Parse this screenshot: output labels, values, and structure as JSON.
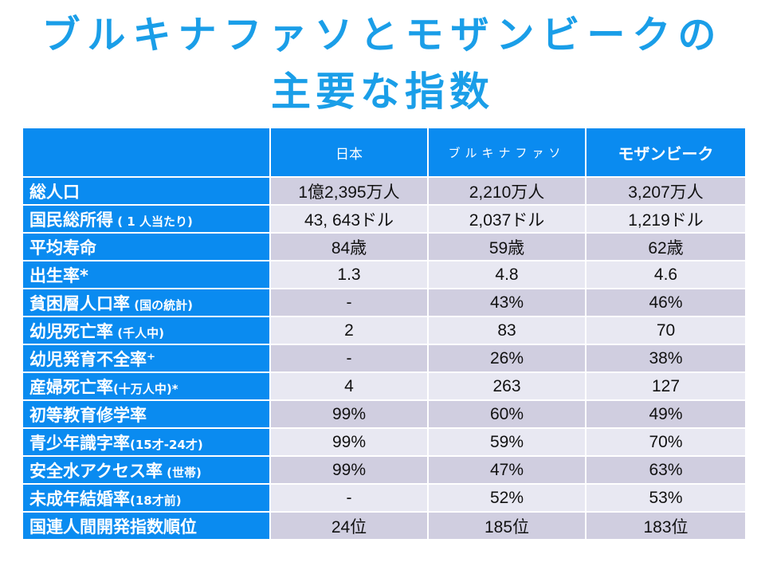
{
  "title": {
    "line1": "ブルキナファソとモザンビークの",
    "line2": "主要な指数"
  },
  "table": {
    "headers": [
      "",
      "日本",
      "ブルキナファソ",
      "モザンビーク"
    ],
    "rows": [
      {
        "label": "総人口",
        "note": "",
        "japan": "1億2,395万人",
        "burkina": "2,210万人",
        "mozambique": "3,207万人"
      },
      {
        "label": "国民総所得",
        "note": " ( 1 人当たり)",
        "japan": "43, 643ドル",
        "burkina": "2,037ドル",
        "mozambique": "1,219ドル"
      },
      {
        "label": "平均寿命",
        "note": "",
        "japan": "84歳",
        "burkina": "59歳",
        "mozambique": "62歳"
      },
      {
        "label": "出生率*",
        "note": "",
        "japan": "1.3",
        "burkina": "4.8",
        "mozambique": "4.6"
      },
      {
        "label": "貧困層人口率",
        "note": " (国の統計)",
        "japan": "-",
        "burkina": "43%",
        "mozambique": "46%"
      },
      {
        "label": "幼児死亡率",
        "note": " (千人中)",
        "japan": "2",
        "burkina": "83",
        "mozambique": "70"
      },
      {
        "label": "幼児発育不全率⁺",
        "note": "",
        "japan": "-",
        "burkina": "26%",
        "mozambique": "38%"
      },
      {
        "label": "産婦死亡率",
        "note": "(十万人中)*",
        "japan": "4",
        "burkina": "263",
        "mozambique": "127"
      },
      {
        "label": "初等教育修学率",
        "note": "",
        "japan": "99%",
        "burkina": "60%",
        "mozambique": "49%"
      },
      {
        "label": "青少年識字率",
        "note": "(15才-24才)",
        "japan": "99%",
        "burkina": "59%",
        "mozambique": "70%"
      },
      {
        "label": "安全水アクセス率",
        "note": " (世帯)",
        "japan": "99%",
        "burkina": "47%",
        "mozambique": "63%"
      },
      {
        "label": "未成年結婚率",
        "note": "(18才前)",
        "japan": "-",
        "burkina": "52%",
        "mozambique": "53%"
      },
      {
        "label": "国連人間開発指数順位",
        "note": "",
        "japan": "24位",
        "burkina": "185位",
        "mozambique": "183位"
      }
    ]
  }
}
